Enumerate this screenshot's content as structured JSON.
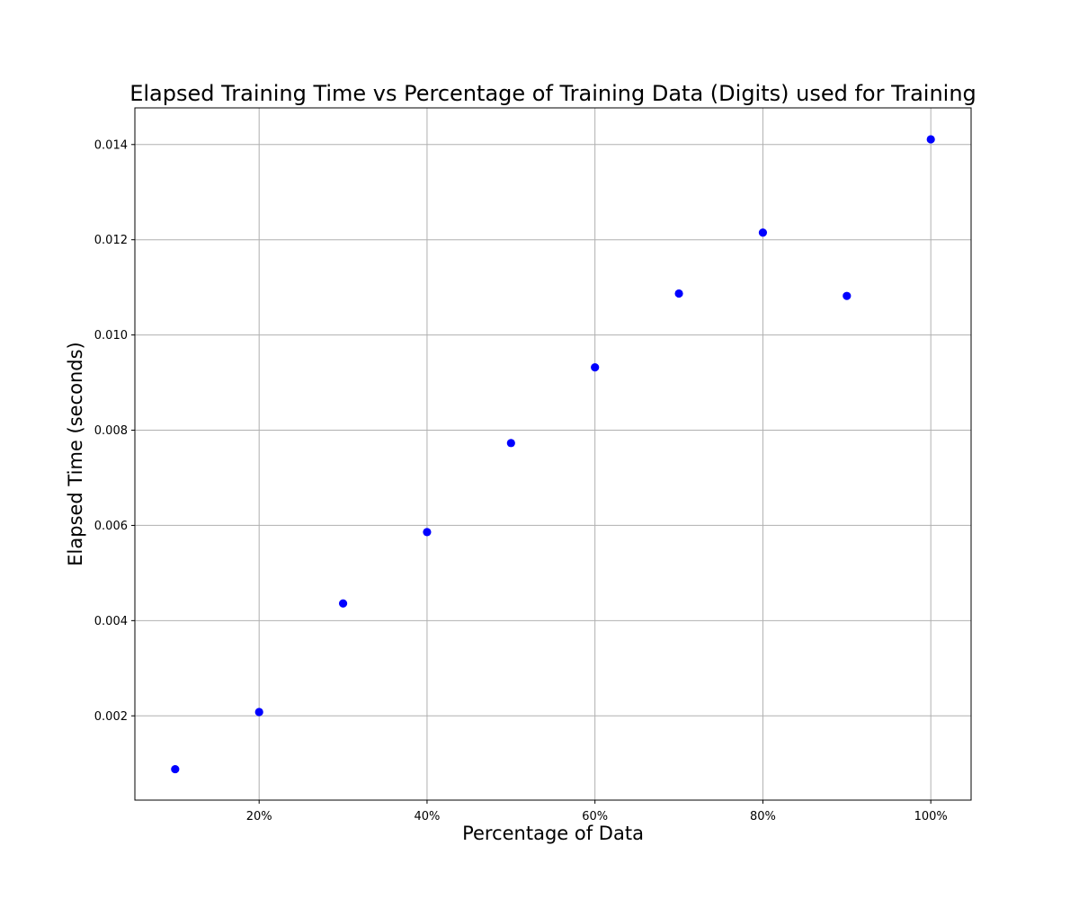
{
  "chart_data": {
    "type": "scatter",
    "title": "Elapsed Training Time vs Percentage of Training Data (Digits) used for Training",
    "xlabel": "Percentage of Data",
    "ylabel": "Elapsed Time (seconds)",
    "x": [
      10,
      20,
      30,
      40,
      50,
      60,
      70,
      80,
      90,
      100
    ],
    "y": [
      0.00088,
      0.00208,
      0.00436,
      0.00586,
      0.00773,
      0.00932,
      0.01087,
      0.01215,
      0.01082,
      0.01411
    ],
    "xlim": [
      5.2,
      104.8
    ],
    "ylim": [
      0.00023,
      0.01477
    ],
    "xticks": [
      20,
      40,
      60,
      80,
      100
    ],
    "xtick_labels": [
      "20%",
      "40%",
      "60%",
      "80%",
      "100%"
    ],
    "yticks": [
      0.002,
      0.004,
      0.006,
      0.008,
      0.01,
      0.012,
      0.014
    ],
    "ytick_labels": [
      "0.002",
      "0.004",
      "0.006",
      "0.008",
      "0.010",
      "0.012",
      "0.014"
    ],
    "grid": true,
    "marker_color": "#0000ff"
  }
}
